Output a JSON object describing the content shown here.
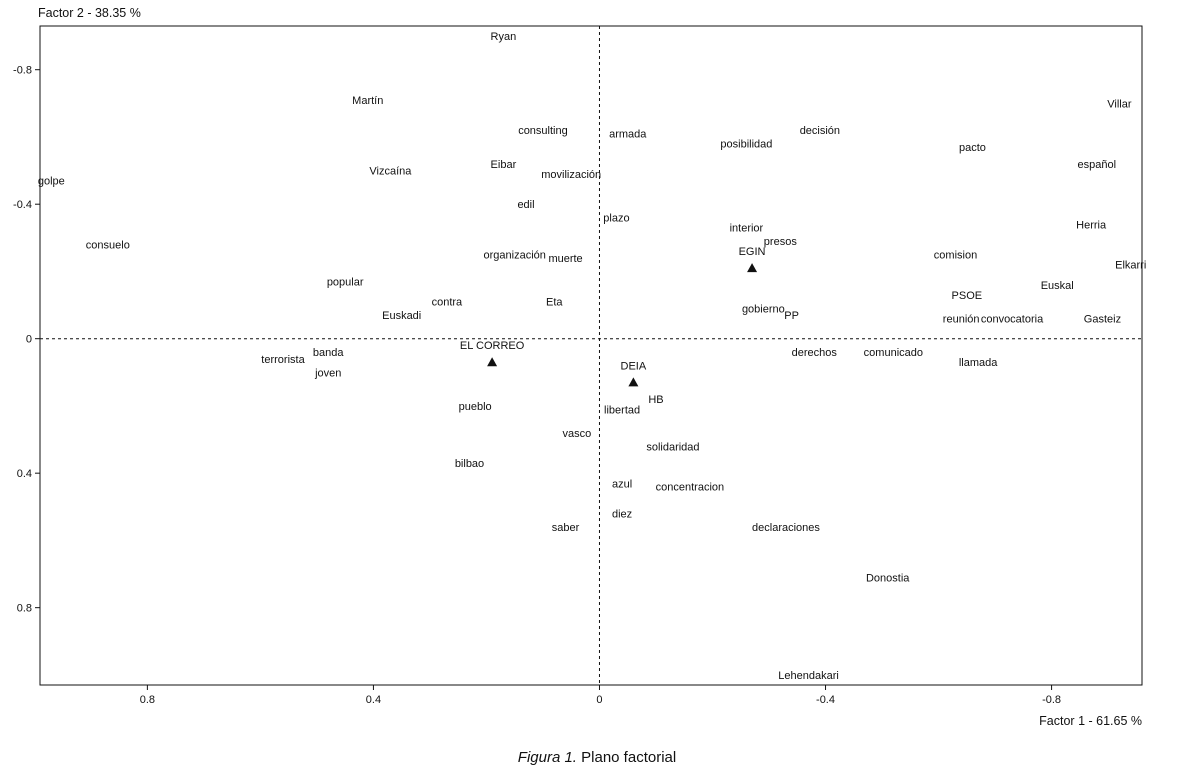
{
  "caption": {
    "prefix": "Figura 1.",
    "text": " Plano factorial"
  },
  "chart_data": {
    "type": "scatter",
    "title": "",
    "xlabel": "Factor 1  -  61.65 %",
    "ylabel": "Factor 2  -  38.35 %",
    "xlim": [
      0.99,
      -0.96
    ],
    "ylim": [
      -0.93,
      1.03
    ],
    "x_ticks": [
      0.8,
      0.4,
      0,
      -0.4,
      -0.8
    ],
    "x_tick_labels": [
      "0.8",
      "0.4",
      "0",
      "-0.4",
      "-0.8"
    ],
    "y_ticks": [
      -0.8,
      -0.4,
      0,
      0.4,
      0.8
    ],
    "y_tick_labels": [
      "-0.8",
      "-0.4",
      "0",
      "0.4",
      "0.8"
    ],
    "grid": false,
    "reference_lines": {
      "x": 0,
      "y": 0,
      "style": "dashed"
    },
    "words": [
      {
        "label": "Ryan",
        "x": 0.17,
        "y": -0.9
      },
      {
        "label": "Martín",
        "x": 0.41,
        "y": -0.71
      },
      {
        "label": "consulting",
        "x": 0.1,
        "y": -0.62
      },
      {
        "label": "armada",
        "x": -0.05,
        "y": -0.61
      },
      {
        "label": "posibilidad",
        "x": -0.26,
        "y": -0.58
      },
      {
        "label": "decisión",
        "x": -0.39,
        "y": -0.62
      },
      {
        "label": "Villar",
        "x": -0.92,
        "y": -0.7
      },
      {
        "label": "pacto",
        "x": -0.66,
        "y": -0.57
      },
      {
        "label": "Vizcaína",
        "x": 0.37,
        "y": -0.5
      },
      {
        "label": "Eibar",
        "x": 0.17,
        "y": -0.52
      },
      {
        "label": "movilización",
        "x": 0.05,
        "y": -0.49
      },
      {
        "label": "español",
        "x": -0.88,
        "y": -0.52
      },
      {
        "label": "golpe",
        "x": 0.97,
        "y": -0.47
      },
      {
        "label": "edil",
        "x": 0.13,
        "y": -0.4
      },
      {
        "label": "plazo",
        "x": -0.03,
        "y": -0.36
      },
      {
        "label": "interior",
        "x": -0.26,
        "y": -0.33
      },
      {
        "label": "Herria",
        "x": -0.87,
        "y": -0.34
      },
      {
        "label": "consuelo",
        "x": 0.87,
        "y": -0.28
      },
      {
        "label": "presos",
        "x": -0.32,
        "y": -0.29
      },
      {
        "label": "organización",
        "x": 0.15,
        "y": -0.25
      },
      {
        "label": "muerte",
        "x": 0.06,
        "y": -0.24
      },
      {
        "label": "comision",
        "x": -0.63,
        "y": -0.25
      },
      {
        "label": "Elkarri",
        "x": -0.94,
        "y": -0.22
      },
      {
        "label": "popular",
        "x": 0.45,
        "y": -0.17
      },
      {
        "label": "Euskal",
        "x": -0.81,
        "y": -0.16
      },
      {
        "label": "contra",
        "x": 0.27,
        "y": -0.11
      },
      {
        "label": "Eta",
        "x": 0.08,
        "y": -0.11
      },
      {
        "label": "PSOE",
        "x": -0.65,
        "y": -0.13
      },
      {
        "label": "gobierno",
        "x": -0.29,
        "y": -0.09
      },
      {
        "label": "PP",
        "x": -0.34,
        "y": -0.07
      },
      {
        "label": "Euskadi",
        "x": 0.35,
        "y": -0.07
      },
      {
        "label": "reunión",
        "x": -0.64,
        "y": -0.06
      },
      {
        "label": "convocatoria",
        "x": -0.73,
        "y": -0.06
      },
      {
        "label": "Gasteiz",
        "x": -0.89,
        "y": -0.06
      },
      {
        "label": "banda",
        "x": 0.48,
        "y": 0.04
      },
      {
        "label": "terrorista",
        "x": 0.56,
        "y": 0.06
      },
      {
        "label": "derechos",
        "x": -0.38,
        "y": 0.04
      },
      {
        "label": "comunicado",
        "x": -0.52,
        "y": 0.04
      },
      {
        "label": "llamada",
        "x": -0.67,
        "y": 0.07
      },
      {
        "label": "joven",
        "x": 0.48,
        "y": 0.1
      },
      {
        "label": "pueblo",
        "x": 0.22,
        "y": 0.2
      },
      {
        "label": "libertad",
        "x": -0.04,
        "y": 0.21
      },
      {
        "label": "HB",
        "x": -0.1,
        "y": 0.18
      },
      {
        "label": "vasco",
        "x": 0.04,
        "y": 0.28
      },
      {
        "label": "solidaridad",
        "x": -0.13,
        "y": 0.32
      },
      {
        "label": "bilbao",
        "x": 0.23,
        "y": 0.37
      },
      {
        "label": "azul",
        "x": -0.04,
        "y": 0.43
      },
      {
        "label": "concentracion",
        "x": -0.16,
        "y": 0.44
      },
      {
        "label": "diez",
        "x": -0.04,
        "y": 0.52
      },
      {
        "label": "saber",
        "x": 0.06,
        "y": 0.56
      },
      {
        "label": "declaraciones",
        "x": -0.33,
        "y": 0.56
      },
      {
        "label": "Donostia",
        "x": -0.51,
        "y": 0.71
      },
      {
        "label": "Lehendakari",
        "x": -0.37,
        "y": 1.0
      }
    ],
    "supplementary": [
      {
        "label": "EL CORREO",
        "x": 0.19,
        "y": 0.07,
        "marker": "triangle"
      },
      {
        "label": "EGIN",
        "x": -0.27,
        "y": -0.21,
        "marker": "triangle"
      },
      {
        "label": "DEIA",
        "x": -0.06,
        "y": 0.13,
        "marker": "triangle"
      }
    ]
  }
}
